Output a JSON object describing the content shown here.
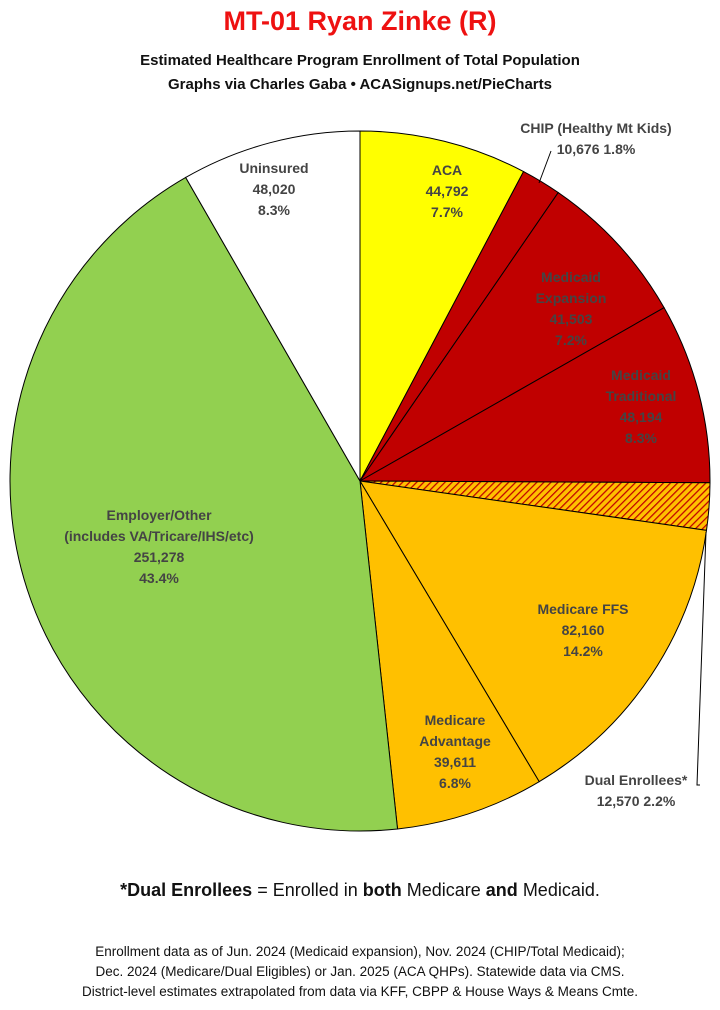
{
  "header": {
    "title": "MT-01 Ryan Zinke (R)",
    "subtitle_line1": "Estimated Healthcare Program Enrollment of Total Population",
    "subtitle_line2": "Graphs via Charles Gaba  •  ACASignups.net/PieCharts"
  },
  "chart_data": {
    "type": "pie",
    "start_angle_deg": 0,
    "direction": "clockwise",
    "slices": [
      {
        "label": "ACA",
        "value": 44792,
        "percent": "7.7%",
        "color": "#ffff00",
        "pattern": "none"
      },
      {
        "label": "CHIP (Healthy Mt Kids)",
        "value": 10676,
        "percent": "1.8%",
        "color": "#c00000",
        "pattern": "none"
      },
      {
        "label": "Medicaid Expansion",
        "value": 41503,
        "percent": "7.2%",
        "color": "#c00000",
        "pattern": "none"
      },
      {
        "label": "Medicaid Traditional",
        "value": 48194,
        "percent": "8.3%",
        "color": "#c00000",
        "pattern": "none"
      },
      {
        "label": "Dual Enrollees*",
        "value": 12570,
        "percent": "2.2%",
        "color": "#ffc000",
        "pattern": "hatch"
      },
      {
        "label": "Medicare FFS",
        "value": 82160,
        "percent": "14.2%",
        "color": "#ffc000",
        "pattern": "none"
      },
      {
        "label": "Medicare Advantage",
        "value": 39611,
        "percent": "6.8%",
        "color": "#ffc000",
        "pattern": "none"
      },
      {
        "label": "Employer/Other (includes VA/Tricare/IHS/etc)",
        "value": 251278,
        "percent": "43.4%",
        "color": "#92d050",
        "pattern": "none"
      },
      {
        "label": "Uninsured",
        "value": 48020,
        "percent": "8.3%",
        "color": "#ffffff",
        "pattern": "none"
      }
    ],
    "labels": [
      {
        "lines": [
          "ACA",
          "44,792",
          "7.7%"
        ]
      },
      {
        "lines": [
          "CHIP (Healthy Mt Kids)",
          "10,676 1.8%"
        ]
      },
      {
        "lines": [
          "Medicaid",
          "Expansion",
          "41,503",
          "7.2%"
        ]
      },
      {
        "lines": [
          "Medicaid",
          "Traditional",
          "48,194",
          "8.3%"
        ]
      },
      {
        "lines": [
          "Dual Enrollees*",
          "12,570 2.2%"
        ]
      },
      {
        "lines": [
          "Medicare FFS",
          "82,160",
          "14.2%"
        ]
      },
      {
        "lines": [
          "Medicare",
          "Advantage",
          "39,611",
          "6.8%"
        ]
      },
      {
        "lines": [
          "Employer/Other",
          "(includes VA/Tricare/IHS/etc)",
          "251,278",
          "43.4%"
        ]
      },
      {
        "lines": [
          "Uninsured",
          "48,020",
          "8.3%"
        ]
      }
    ]
  },
  "footnote": {
    "term": "*Dual Enrollees",
    "text1": " = Enrolled in ",
    "both": "both",
    "text2": " Medicare ",
    "and": "and",
    "text3": " Medicaid."
  },
  "footer": {
    "line1": "Enrollment data as of Jun. 2024 (Medicaid expansion), Nov. 2024 (CHIP/Total Medicaid);",
    "line2": "Dec. 2024 (Medicare/Dual Eligibles) or Jan. 2025 (ACA QHPs). Statewide data via CMS.",
    "line3": "District-level estimates extrapolated from data via KFF, CBPP & House Ways & Means Cmte."
  }
}
